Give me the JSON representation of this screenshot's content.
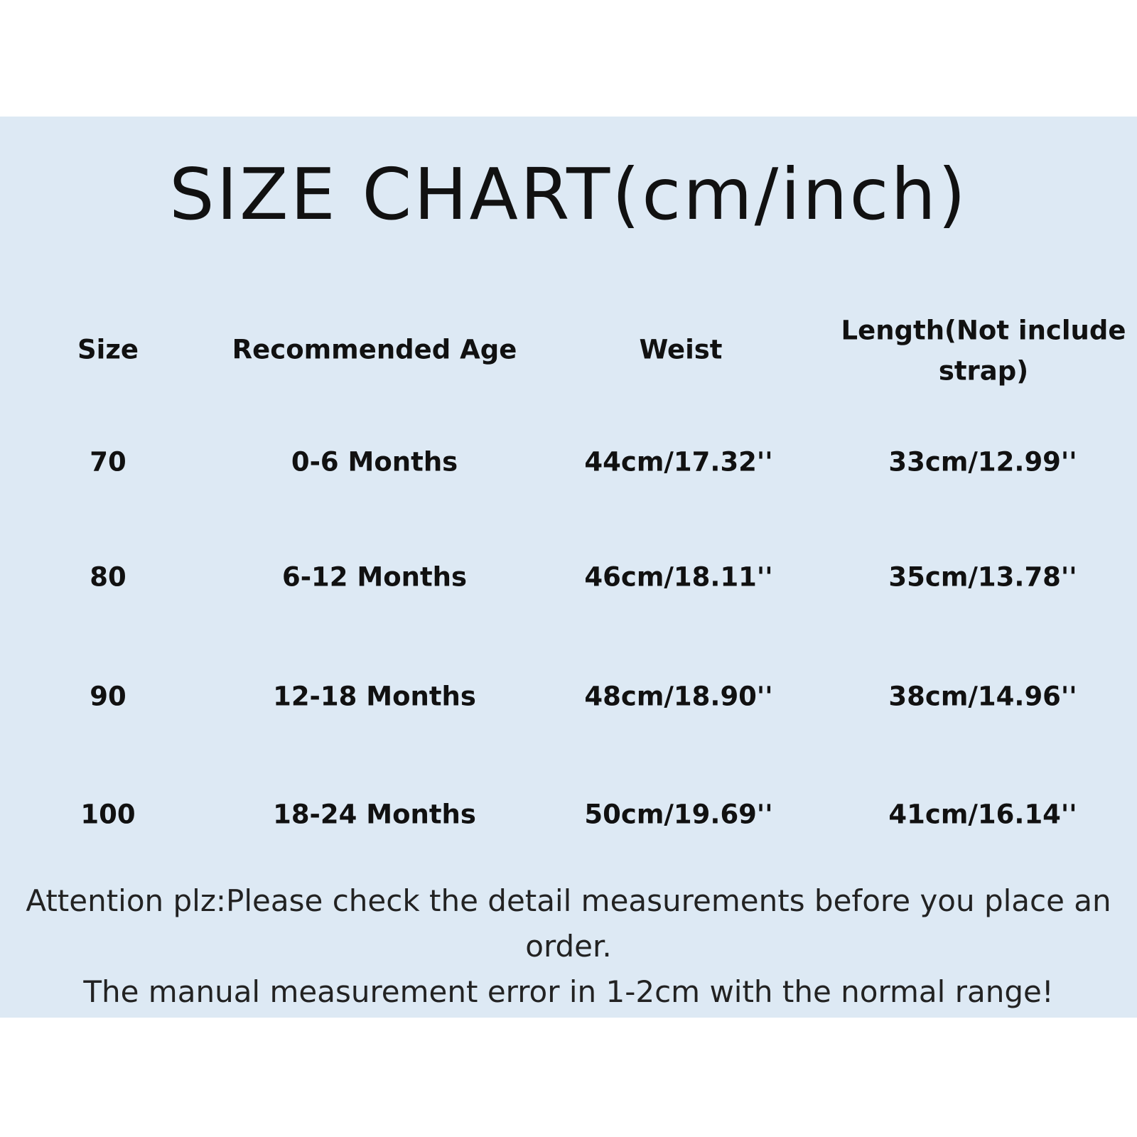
{
  "title": "SIZE CHART(cm/inch)",
  "colors": {
    "background": "#dde9f4",
    "text": "#111111"
  },
  "table": {
    "headers": [
      "Size",
      "Recommended Age",
      "Weist",
      "Length(Not include",
      "strap)"
    ],
    "rows": [
      [
        "70",
        "0-6 Months",
        "44cm/17.32''",
        "33cm/12.99''"
      ],
      [
        "80",
        "6-12 Months",
        "46cm/18.11''",
        "35cm/13.78''"
      ],
      [
        "90",
        "12-18 Months",
        "48cm/18.90''",
        "38cm/14.96''"
      ],
      [
        "100",
        "18-24 Months",
        "50cm/19.69''",
        "41cm/16.14''"
      ]
    ]
  },
  "footer": {
    "line1": "Attention plz:Please check the detail measurements before you place an",
    "line2": "order.",
    "line3": "The manual measurement error in 1-2cm with the normal range!"
  }
}
